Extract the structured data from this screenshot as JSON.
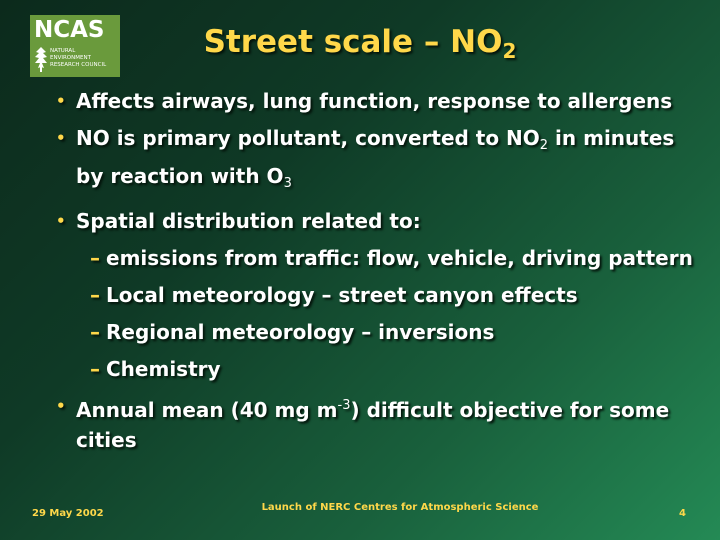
{
  "logo": {
    "text": "NCAS",
    "sub_lines": [
      "NATURAL",
      "ENVIRONMENT",
      "RESEARCH COUNCIL"
    ]
  },
  "title": {
    "main": "Street scale – NO",
    "sub": "2"
  },
  "bullets": {
    "b1": "Affects airways, lung function, response to allergens",
    "b2": {
      "p1": "NO is primary pollutant, converted to NO",
      "s1": "2",
      "p2": " in minutes by reaction with O",
      "s2": "3"
    },
    "b3": "Spatial distribution related to:",
    "subs": [
      "emissions from traffic: flow, vehicle, driving pattern",
      "Local meteorology – street canyon effects",
      "Regional meteorology – inversions",
      "Chemistry"
    ],
    "b4": {
      "p1": "Annual mean  (40 mg m",
      "sup": "-3",
      "p2": ") difficult objective for some cities"
    }
  },
  "markers": {
    "bullet": "•",
    "dash": "–"
  },
  "footer": {
    "date": "29 May 2002",
    "center": "Launch of NERC Centres for Atmospheric Science",
    "page": "4"
  }
}
